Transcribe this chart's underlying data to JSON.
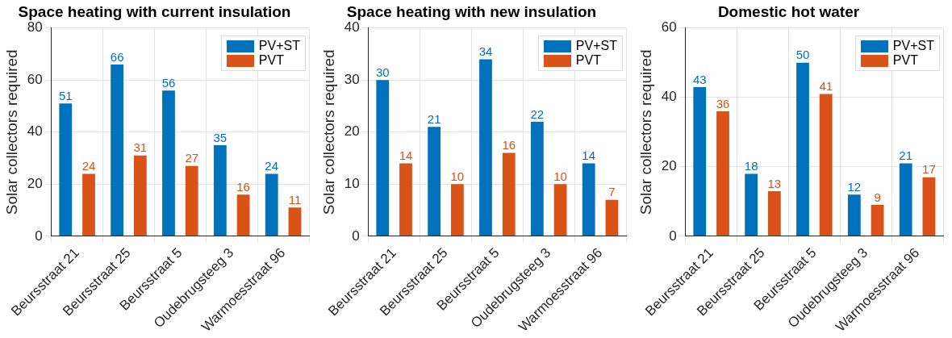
{
  "chart_data": [
    {
      "type": "bar",
      "title": "Space heating with current insulation",
      "ylabel": "Solar collectors required",
      "categories": [
        "Beursstraat 21",
        "Beursstraat 25",
        "Beursstraat 5",
        "Oudebrugsteeg 3",
        "Warmoesstraat 96"
      ],
      "series": [
        {
          "name": "PV+ST",
          "color": "#0072bd",
          "values": [
            51,
            66,
            56,
            35,
            24
          ]
        },
        {
          "name": "PVT",
          "color": "#d95319",
          "values": [
            24,
            31,
            27,
            16,
            11
          ]
        }
      ],
      "ylim": [
        0,
        80
      ],
      "yticks": [
        0,
        20,
        40,
        60,
        80
      ],
      "grid": true,
      "legend": "top right",
      "data_labels": true
    },
    {
      "type": "bar",
      "title": "Space heating with new insulation",
      "ylabel": "Solar collectors required",
      "categories": [
        "Beursstraat 21",
        "Beursstraat 25",
        "Beursstraat 5",
        "Oudebrugsteeg 3",
        "Warmoesstraat 96"
      ],
      "series": [
        {
          "name": "PV+ST",
          "color": "#0072bd",
          "values": [
            30,
            21,
            34,
            22,
            14
          ]
        },
        {
          "name": "PVT",
          "color": "#d95319",
          "values": [
            14,
            10,
            16,
            10,
            7
          ]
        }
      ],
      "ylim": [
        0,
        40
      ],
      "yticks": [
        0,
        10,
        20,
        30,
        40
      ],
      "grid": true,
      "legend": "top right",
      "data_labels": true
    },
    {
      "type": "bar",
      "title": "Domestic hot water",
      "ylabel": "Solar collectors required",
      "categories": [
        "Beursstraat 21",
        "Beursstraat 25",
        "Beursstraat 5",
        "Oudebrugsteeg 3",
        "Warmoesstraat 96"
      ],
      "series": [
        {
          "name": "PV+ST",
          "color": "#0072bd",
          "values": [
            43,
            18,
            50,
            12,
            21
          ]
        },
        {
          "name": "PVT",
          "color": "#d95319",
          "values": [
            36,
            13,
            41,
            9,
            17
          ]
        }
      ],
      "ylim": [
        0,
        60
      ],
      "yticks": [
        0,
        20,
        40,
        60
      ],
      "grid": true,
      "legend": "top right",
      "data_labels": true
    }
  ]
}
